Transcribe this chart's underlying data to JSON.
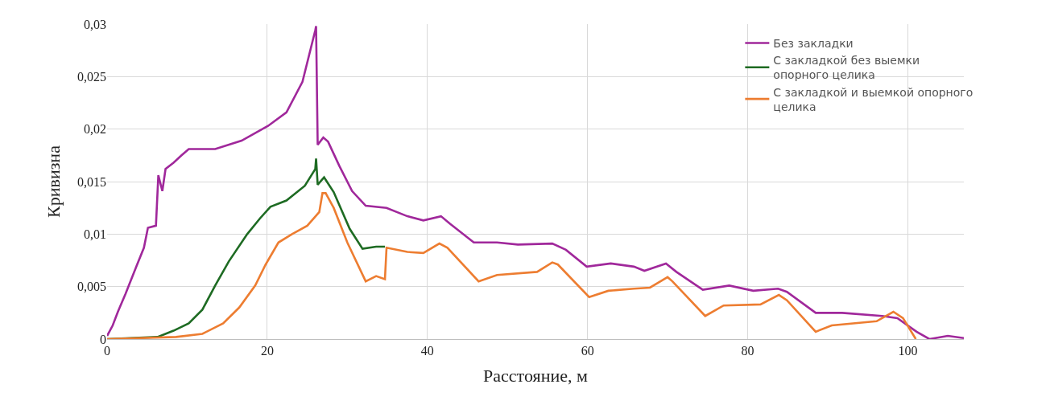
{
  "chart_data": {
    "type": "line",
    "xlabel": "Расстояние, м",
    "ylabel": "Кривизна",
    "xlim": [
      0,
      107
    ],
    "xticks": [
      0,
      20,
      40,
      60,
      80,
      100
    ],
    "ylim": [
      0,
      0.03
    ],
    "yticks": [
      0,
      {
        "value": 0.005,
        "label": "0,005"
      },
      {
        "value": 0.01,
        "label": "0,01"
      },
      {
        "value": 0.015,
        "label": "0,015"
      },
      {
        "value": 0.02,
        "label": "0,02"
      },
      {
        "value": 0.025,
        "label": "0,025"
      },
      {
        "value": 0.03,
        "label": "0,03"
      }
    ],
    "grid": true,
    "legend": "top right",
    "line_style": "solid",
    "marker": "none",
    "series": [
      {
        "name": "Без закладки",
        "color": "#a0289b",
        "x": [
          0,
          0.7,
          1.35,
          2.3,
          3.65,
          4.6,
          5.1,
          6.1,
          6.4,
          6.9,
          7.3,
          8.3,
          9.3,
          10.2,
          13.5,
          16.8,
          20.1,
          22.4,
          24.4,
          26.0,
          26.1,
          26.3,
          27.0,
          27.6,
          29.0,
          30.6,
          32.3,
          34.9,
          37.5,
          39.5,
          41.7,
          42.8,
          45.8,
          48.7,
          51.3,
          55.6,
          57.3,
          59.9,
          62.9,
          65.8,
          67.1,
          69.8,
          71.1,
          74.4,
          77.7,
          80.7,
          83.8,
          84.9,
          88.5,
          91.8,
          96.8,
          98.7,
          101.1,
          102.7,
          105,
          107
        ],
        "values": [
          0.0003,
          0.0013,
          0.0026,
          0.0043,
          0.0069,
          0.0087,
          0.0106,
          0.0108,
          0.0156,
          0.0141,
          0.0162,
          0.0168,
          0.0175,
          0.0181,
          0.0181,
          0.0189,
          0.0203,
          0.0216,
          0.0245,
          0.0294,
          0.0298,
          0.0185,
          0.0192,
          0.0188,
          0.0165,
          0.0141,
          0.0127,
          0.0125,
          0.0117,
          0.0113,
          0.0117,
          0.011,
          0.0092,
          0.0092,
          0.009,
          0.0091,
          0.0085,
          0.0069,
          0.0072,
          0.0069,
          0.0065,
          0.0072,
          0.0064,
          0.0047,
          0.0051,
          0.0046,
          0.0048,
          0.0045,
          0.0025,
          0.0025,
          0.0022,
          0.002,
          0.0007,
          0.0,
          0.0003,
          0.0001
        ]
      },
      {
        "name": "С закладкой без выемки опорного целика",
        "color": "#1e6b23",
        "x": [
          0,
          6.3,
          8.3,
          10.2,
          11.9,
          13.5,
          15.2,
          17.5,
          19.1,
          20.4,
          22.4,
          24.7,
          26.0,
          26.1,
          26.3,
          27.1,
          28.3,
          30.3,
          31.9,
          33.6,
          34.7
        ],
        "values": [
          0,
          0.0002,
          0.0008,
          0.0015,
          0.0028,
          0.0051,
          0.0074,
          0.01,
          0.0115,
          0.0126,
          0.0132,
          0.0146,
          0.0162,
          0.0172,
          0.0147,
          0.0154,
          0.014,
          0.0105,
          0.0086,
          0.0088,
          0.0088
        ]
      },
      {
        "name": "С закладкой и выемкой опорного целика",
        "color": "#ed7d31",
        "x": [
          0,
          8.6,
          11.9,
          14.5,
          16.5,
          18.5,
          19.8,
          21.4,
          23.1,
          25.0,
          26.5,
          26.9,
          27.3,
          28.3,
          30.0,
          32.3,
          33.6,
          34.7,
          34.9,
          37.5,
          39.5,
          41.5,
          42.5,
          46.4,
          48.7,
          53.7,
          55.6,
          56.3,
          60.2,
          62.6,
          65.8,
          67.8,
          70,
          70.6,
          74.7,
          77.0,
          81.6,
          83.9,
          84.9,
          88.5,
          90.5,
          96.1,
          98.2,
          99.4,
          101.0
        ],
        "values": [
          0,
          0.0002,
          0.0005,
          0.0015,
          0.003,
          0.0051,
          0.0071,
          0.0092,
          0.01,
          0.0108,
          0.0121,
          0.0139,
          0.0139,
          0.0125,
          0.0092,
          0.0055,
          0.006,
          0.0057,
          0.0087,
          0.0083,
          0.0082,
          0.0091,
          0.0087,
          0.0055,
          0.0061,
          0.0064,
          0.0073,
          0.0071,
          0.004,
          0.0046,
          0.0048,
          0.0049,
          0.0059,
          0.0055,
          0.0022,
          0.0032,
          0.0033,
          0.0042,
          0.0037,
          0.0007,
          0.0013,
          0.0017,
          0.0026,
          0.002,
          0
        ]
      }
    ]
  }
}
